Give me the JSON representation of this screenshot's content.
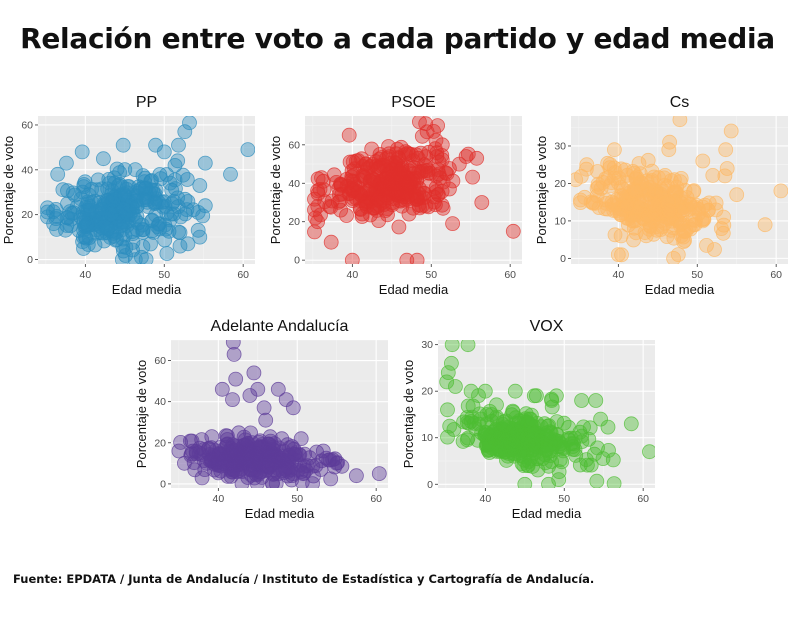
{
  "title": "Relación entre voto a cada partido y edad media",
  "source": "Fuente: EPDATA / Junta de Andalucía / Instituto de Estadística y Cartografía de Andalucía.",
  "chart_data": [
    {
      "type": "scatter",
      "title": "PP",
      "xlabel": "Edad media",
      "ylabel": "Porcentaje de voto",
      "color": "#2b8cbe",
      "xlim": [
        34,
        61.5
      ],
      "ylim": [
        -2,
        64
      ],
      "xticks": [
        40,
        50,
        60
      ],
      "yticks": [
        0,
        20,
        40,
        60
      ],
      "grid": true,
      "cloud": {
        "count": 300,
        "x_mean": 44.5,
        "x_sd": 4.0,
        "y_mean": 22,
        "y_sd": 8,
        "slope": 0.4
      },
      "points": [
        [
          35.2,
          19
        ],
        [
          36.5,
          38
        ],
        [
          37.6,
          43
        ],
        [
          39.6,
          48
        ],
        [
          40.0,
          10
        ],
        [
          44.8,
          51
        ],
        [
          47.7,
          0
        ],
        [
          47.1,
          1
        ],
        [
          48.9,
          51
        ],
        [
          50.0,
          48
        ],
        [
          51.8,
          51
        ],
        [
          51.7,
          44
        ],
        [
          53.2,
          61
        ],
        [
          52.6,
          57
        ],
        [
          55.2,
          24
        ],
        [
          54.3,
          21
        ],
        [
          55.2,
          43
        ],
        [
          58.4,
          38
        ],
        [
          60.6,
          49
        ],
        [
          54.5,
          33
        ],
        [
          52.0,
          6
        ],
        [
          53.0,
          7
        ],
        [
          54.5,
          10
        ]
      ]
    },
    {
      "type": "scatter",
      "title": "PSOE",
      "xlabel": "Edad media",
      "ylabel": "Porcentaje de voto",
      "color": "#e0302c",
      "xlim": [
        34,
        61.5
      ],
      "ylim": [
        -2,
        75
      ],
      "xticks": [
        40,
        50,
        60
      ],
      "yticks": [
        0,
        20,
        40,
        60
      ],
      "grid": true,
      "cloud": {
        "count": 320,
        "x_mean": 44.5,
        "x_sd": 4.0,
        "y_mean": 40,
        "y_sd": 9,
        "slope": 0.5
      },
      "points": [
        [
          35.3,
          22
        ],
        [
          35.6,
          20
        ],
        [
          39.6,
          65
        ],
        [
          40.0,
          0
        ],
        [
          43.5,
          55
        ],
        [
          46.9,
          0
        ],
        [
          48.2,
          0
        ],
        [
          47.5,
          55
        ],
        [
          48.5,
          72
        ],
        [
          49.3,
          71
        ],
        [
          50.3,
          67
        ],
        [
          50.8,
          70
        ],
        [
          51.4,
          60
        ],
        [
          50.5,
          58
        ],
        [
          51.5,
          27
        ],
        [
          52.3,
          37
        ],
        [
          52.7,
          19
        ],
        [
          56.4,
          30
        ],
        [
          60.4,
          15
        ],
        [
          52.0,
          45
        ],
        [
          51.0,
          51
        ]
      ]
    },
    {
      "type": "scatter",
      "title": "Cs",
      "xlabel": "Edad media",
      "ylabel": "Porcentaje de voto",
      "color": "#fdb863",
      "xlim": [
        34,
        61.5
      ],
      "ylim": [
        -1.5,
        38
      ],
      "xticks": [
        40,
        50,
        60
      ],
      "yticks": [
        0,
        10,
        20,
        30
      ],
      "grid": true,
      "cloud": {
        "count": 300,
        "x_mean": 44.5,
        "x_sd": 4.0,
        "y_mean": 14,
        "y_sd": 4.5,
        "slope": -0.45
      },
      "points": [
        [
          34.6,
          21
        ],
        [
          36.0,
          25
        ],
        [
          39.5,
          29
        ],
        [
          40.0,
          1
        ],
        [
          47.8,
          37
        ],
        [
          46.5,
          31
        ],
        [
          46.4,
          29
        ],
        [
          47.1,
          21
        ],
        [
          47.4,
          19
        ],
        [
          47.6,
          1
        ],
        [
          47.0,
          0
        ],
        [
          50.7,
          26
        ],
        [
          53.6,
          29
        ],
        [
          53.8,
          24
        ],
        [
          54.3,
          34
        ],
        [
          53.5,
          22
        ],
        [
          55.0,
          17
        ],
        [
          58.6,
          9
        ],
        [
          60.6,
          18
        ]
      ]
    },
    {
      "type": "scatter",
      "title": "Adelante Andalucía",
      "xlabel": "Edad media",
      "ylabel": "Porcentaje de voto",
      "color": "#5e3c99",
      "xlim": [
        34,
        61.5
      ],
      "ylim": [
        -2,
        70
      ],
      "xticks": [
        40,
        50,
        60
      ],
      "yticks": [
        0,
        20,
        40,
        60
      ],
      "grid": true,
      "cloud": {
        "count": 300,
        "x_mean": 44.5,
        "x_sd": 4.0,
        "y_mean": 12,
        "y_sd": 5,
        "slope": -0.35
      },
      "points": [
        [
          41.9,
          69
        ],
        [
          42.0,
          63
        ],
        [
          42.2,
          51
        ],
        [
          40.5,
          46
        ],
        [
          44.5,
          54
        ],
        [
          45.0,
          46
        ],
        [
          44.0,
          43
        ],
        [
          41.8,
          41
        ],
        [
          47.6,
          46
        ],
        [
          48.6,
          41
        ],
        [
          49.5,
          37
        ],
        [
          46.0,
          31
        ],
        [
          45.8,
          37
        ],
        [
          35.0,
          16
        ],
        [
          35.7,
          10
        ],
        [
          50.5,
          22
        ],
        [
          53.3,
          16
        ],
        [
          55.0,
          10
        ],
        [
          57.5,
          4
        ],
        [
          60.4,
          5
        ],
        [
          43.0,
          0
        ]
      ]
    },
    {
      "type": "scatter",
      "title": "VOX",
      "xlabel": "Edad media",
      "ylabel": "Porcentaje de voto",
      "color": "#4dbd33",
      "xlim": [
        34,
        61.5
      ],
      "ylim": [
        -0.8,
        31
      ],
      "xticks": [
        40,
        50,
        60
      ],
      "yticks": [
        0,
        10,
        20,
        30
      ],
      "grid": true,
      "cloud": {
        "count": 300,
        "x_mean": 44.5,
        "x_sd": 4.0,
        "y_mean": 10,
        "y_sd": 3.0,
        "slope": -0.3
      },
      "points": [
        [
          35.8,
          30
        ],
        [
          37.8,
          30
        ],
        [
          35.3,
          24
        ],
        [
          35.7,
          26
        ],
        [
          35.1,
          22
        ],
        [
          36.2,
          21
        ],
        [
          38.2,
          20
        ],
        [
          40.0,
          20
        ],
        [
          43.8,
          20
        ],
        [
          46.2,
          19
        ],
        [
          48.4,
          18
        ],
        [
          49.0,
          19
        ],
        [
          52.2,
          18
        ],
        [
          54.0,
          18
        ],
        [
          54.6,
          14
        ],
        [
          58.5,
          13
        ],
        [
          60.8,
          7
        ],
        [
          48.0,
          0
        ],
        [
          45.0,
          0
        ],
        [
          49.3,
          1
        ],
        [
          35.2,
          16
        ]
      ]
    }
  ]
}
